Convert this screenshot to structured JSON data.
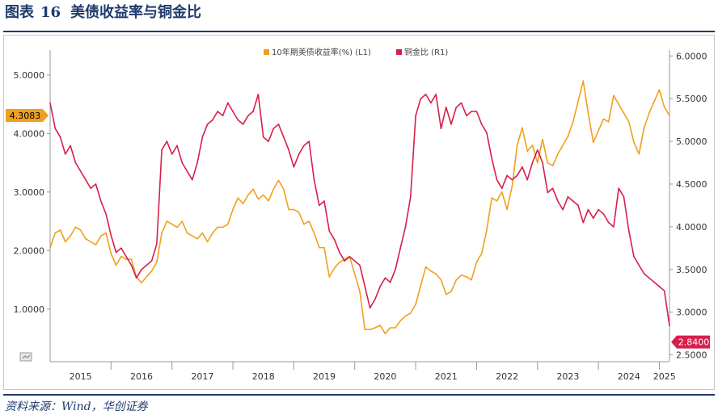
{
  "header": {
    "fig_label": "图表",
    "fig_number": "16",
    "title": "美债收益率与铜金比"
  },
  "source": "资料来源：Wind，华创证券",
  "chart_data": {
    "type": "line",
    "x_ticks": [
      "2015",
      "2016",
      "2017",
      "2018",
      "2019",
      "2020",
      "2021",
      "2022",
      "2023",
      "2024",
      "2025"
    ],
    "x_range": [
      "2015-01",
      "2025-03"
    ],
    "y_left": {
      "ticks": [
        "1.0000",
        "2.0000",
        "3.0000",
        "4.0000",
        "5.0000"
      ],
      "range": [
        0.1,
        5.4
      ]
    },
    "y_right": {
      "ticks": [
        "2.5000",
        "3.0000",
        "3.5000",
        "4.0000",
        "4.5000",
        "5.0000",
        "5.5000",
        "6.0000"
      ],
      "range": [
        2.42,
        6.05
      ]
    },
    "grid": false,
    "legend_position": "top-center",
    "series": [
      {
        "name": "10年期美债收益率(%) (L1)",
        "axis": "left",
        "color": "#f0a01e",
        "last_label": "4.3083",
        "points": [
          [
            "2015-01",
            2.05
          ],
          [
            "2015-02",
            2.3
          ],
          [
            "2015-03",
            2.35
          ],
          [
            "2015-04",
            2.15
          ],
          [
            "2015-05",
            2.25
          ],
          [
            "2015-06",
            2.4
          ],
          [
            "2015-07",
            2.35
          ],
          [
            "2015-08",
            2.2
          ],
          [
            "2015-09",
            2.15
          ],
          [
            "2015-10",
            2.1
          ],
          [
            "2015-11",
            2.25
          ],
          [
            "2015-12",
            2.3
          ],
          [
            "2016-01",
            1.95
          ],
          [
            "2016-02",
            1.75
          ],
          [
            "2016-03",
            1.9
          ],
          [
            "2016-04",
            1.85
          ],
          [
            "2016-05",
            1.85
          ],
          [
            "2016-06",
            1.55
          ],
          [
            "2016-07",
            1.45
          ],
          [
            "2016-08",
            1.55
          ],
          [
            "2016-09",
            1.65
          ],
          [
            "2016-10",
            1.8
          ],
          [
            "2016-11",
            2.3
          ],
          [
            "2016-12",
            2.5
          ],
          [
            "2017-01",
            2.45
          ],
          [
            "2017-02",
            2.4
          ],
          [
            "2017-03",
            2.5
          ],
          [
            "2017-04",
            2.3
          ],
          [
            "2017-05",
            2.25
          ],
          [
            "2017-06",
            2.2
          ],
          [
            "2017-07",
            2.3
          ],
          [
            "2017-08",
            2.15
          ],
          [
            "2017-09",
            2.3
          ],
          [
            "2017-10",
            2.4
          ],
          [
            "2017-11",
            2.4
          ],
          [
            "2017-12",
            2.45
          ],
          [
            "2018-01",
            2.7
          ],
          [
            "2018-02",
            2.9
          ],
          [
            "2018-03",
            2.8
          ],
          [
            "2018-04",
            2.95
          ],
          [
            "2018-05",
            3.05
          ],
          [
            "2018-06",
            2.88
          ],
          [
            "2018-07",
            2.95
          ],
          [
            "2018-08",
            2.85
          ],
          [
            "2018-09",
            3.05
          ],
          [
            "2018-10",
            3.2
          ],
          [
            "2018-11",
            3.05
          ],
          [
            "2018-12",
            2.7
          ],
          [
            "2019-01",
            2.7
          ],
          [
            "2019-02",
            2.65
          ],
          [
            "2019-03",
            2.45
          ],
          [
            "2019-04",
            2.5
          ],
          [
            "2019-05",
            2.3
          ],
          [
            "2019-06",
            2.05
          ],
          [
            "2019-07",
            2.05
          ],
          [
            "2019-08",
            1.55
          ],
          [
            "2019-09",
            1.7
          ],
          [
            "2019-10",
            1.8
          ],
          [
            "2019-11",
            1.85
          ],
          [
            "2019-12",
            1.9
          ],
          [
            "2020-01",
            1.6
          ],
          [
            "2020-02",
            1.3
          ],
          [
            "2020-03",
            0.65
          ],
          [
            "2020-04",
            0.65
          ],
          [
            "2020-05",
            0.68
          ],
          [
            "2020-06",
            0.72
          ],
          [
            "2020-07",
            0.58
          ],
          [
            "2020-08",
            0.68
          ],
          [
            "2020-09",
            0.68
          ],
          [
            "2020-10",
            0.8
          ],
          [
            "2020-11",
            0.88
          ],
          [
            "2020-12",
            0.93
          ],
          [
            "2021-01",
            1.08
          ],
          [
            "2021-02",
            1.4
          ],
          [
            "2021-03",
            1.72
          ],
          [
            "2021-04",
            1.65
          ],
          [
            "2021-05",
            1.6
          ],
          [
            "2021-06",
            1.5
          ],
          [
            "2021-07",
            1.25
          ],
          [
            "2021-08",
            1.3
          ],
          [
            "2021-09",
            1.5
          ],
          [
            "2021-10",
            1.58
          ],
          [
            "2021-11",
            1.55
          ],
          [
            "2021-12",
            1.5
          ],
          [
            "2022-01",
            1.8
          ],
          [
            "2022-02",
            1.95
          ],
          [
            "2022-03",
            2.35
          ],
          [
            "2022-04",
            2.9
          ],
          [
            "2022-05",
            2.85
          ],
          [
            "2022-06",
            3.0
          ],
          [
            "2022-07",
            2.7
          ],
          [
            "2022-08",
            3.1
          ],
          [
            "2022-09",
            3.8
          ],
          [
            "2022-10",
            4.1
          ],
          [
            "2022-11",
            3.7
          ],
          [
            "2022-12",
            3.8
          ],
          [
            "2023-01",
            3.5
          ],
          [
            "2023-02",
            3.9
          ],
          [
            "2023-03",
            3.5
          ],
          [
            "2023-04",
            3.45
          ],
          [
            "2023-05",
            3.65
          ],
          [
            "2023-06",
            3.8
          ],
          [
            "2023-07",
            3.95
          ],
          [
            "2023-08",
            4.2
          ],
          [
            "2023-09",
            4.55
          ],
          [
            "2023-10",
            4.9
          ],
          [
            "2023-11",
            4.35
          ],
          [
            "2023-12",
            3.85
          ],
          [
            "2024-01",
            4.05
          ],
          [
            "2024-02",
            4.25
          ],
          [
            "2024-03",
            4.2
          ],
          [
            "2024-04",
            4.65
          ],
          [
            "2024-05",
            4.5
          ],
          [
            "2024-06",
            4.35
          ],
          [
            "2024-07",
            4.2
          ],
          [
            "2024-08",
            3.85
          ],
          [
            "2024-09",
            3.65
          ],
          [
            "2024-10",
            4.1
          ],
          [
            "2024-11",
            4.35
          ],
          [
            "2024-12",
            4.55
          ],
          [
            "2025-01",
            4.75
          ],
          [
            "2025-02",
            4.45
          ],
          [
            "2025-03",
            4.31
          ]
        ]
      },
      {
        "name": "铜金比 (R1)",
        "axis": "right",
        "color": "#d81e4a",
        "last_label": "2.8400",
        "points": [
          [
            "2015-01",
            5.45
          ],
          [
            "2015-02",
            5.15
          ],
          [
            "2015-03",
            5.05
          ],
          [
            "2015-04",
            4.85
          ],
          [
            "2015-05",
            4.95
          ],
          [
            "2015-06",
            4.75
          ],
          [
            "2015-07",
            4.65
          ],
          [
            "2015-08",
            4.55
          ],
          [
            "2015-09",
            4.45
          ],
          [
            "2015-10",
            4.5
          ],
          [
            "2015-11",
            4.3
          ],
          [
            "2015-12",
            4.15
          ],
          [
            "2016-01",
            3.9
          ],
          [
            "2016-02",
            3.7
          ],
          [
            "2016-03",
            3.75
          ],
          [
            "2016-04",
            3.65
          ],
          [
            "2016-05",
            3.55
          ],
          [
            "2016-06",
            3.4
          ],
          [
            "2016-07",
            3.5
          ],
          [
            "2016-08",
            3.55
          ],
          [
            "2016-09",
            3.6
          ],
          [
            "2016-10",
            3.8
          ],
          [
            "2016-11",
            4.9
          ],
          [
            "2016-12",
            5.0
          ],
          [
            "2017-01",
            4.85
          ],
          [
            "2017-02",
            4.95
          ],
          [
            "2017-03",
            4.75
          ],
          [
            "2017-04",
            4.65
          ],
          [
            "2017-05",
            4.55
          ],
          [
            "2017-06",
            4.75
          ],
          [
            "2017-07",
            5.05
          ],
          [
            "2017-08",
            5.2
          ],
          [
            "2017-09",
            5.25
          ],
          [
            "2017-10",
            5.35
          ],
          [
            "2017-11",
            5.3
          ],
          [
            "2017-12",
            5.45
          ],
          [
            "2018-01",
            5.35
          ],
          [
            "2018-02",
            5.25
          ],
          [
            "2018-03",
            5.2
          ],
          [
            "2018-04",
            5.3
          ],
          [
            "2018-05",
            5.35
          ],
          [
            "2018-06",
            5.55
          ],
          [
            "2018-07",
            5.05
          ],
          [
            "2018-08",
            5.0
          ],
          [
            "2018-09",
            5.15
          ],
          [
            "2018-10",
            5.2
          ],
          [
            "2018-11",
            5.05
          ],
          [
            "2018-12",
            4.9
          ],
          [
            "2019-01",
            4.7
          ],
          [
            "2019-02",
            4.85
          ],
          [
            "2019-03",
            4.95
          ],
          [
            "2019-04",
            5.0
          ],
          [
            "2019-05",
            4.55
          ],
          [
            "2019-06",
            4.25
          ],
          [
            "2019-07",
            4.3
          ],
          [
            "2019-08",
            3.95
          ],
          [
            "2019-09",
            3.85
          ],
          [
            "2019-10",
            3.7
          ],
          [
            "2019-11",
            3.6
          ],
          [
            "2019-12",
            3.65
          ],
          [
            "2020-01",
            3.6
          ],
          [
            "2020-02",
            3.55
          ],
          [
            "2020-03",
            3.3
          ],
          [
            "2020-04",
            3.05
          ],
          [
            "2020-05",
            3.15
          ],
          [
            "2020-06",
            3.3
          ],
          [
            "2020-07",
            3.4
          ],
          [
            "2020-08",
            3.35
          ],
          [
            "2020-09",
            3.5
          ],
          [
            "2020-10",
            3.75
          ],
          [
            "2020-11",
            4.0
          ],
          [
            "2020-12",
            4.35
          ],
          [
            "2021-01",
            5.3
          ],
          [
            "2021-02",
            5.5
          ],
          [
            "2021-03",
            5.55
          ],
          [
            "2021-04",
            5.45
          ],
          [
            "2021-05",
            5.55
          ],
          [
            "2021-06",
            5.15
          ],
          [
            "2021-07",
            5.4
          ],
          [
            "2021-08",
            5.2
          ],
          [
            "2021-09",
            5.4
          ],
          [
            "2021-10",
            5.45
          ],
          [
            "2021-11",
            5.3
          ],
          [
            "2021-12",
            5.35
          ],
          [
            "2022-01",
            5.35
          ],
          [
            "2022-02",
            5.2
          ],
          [
            "2022-03",
            5.1
          ],
          [
            "2022-04",
            4.8
          ],
          [
            "2022-05",
            4.55
          ],
          [
            "2022-06",
            4.45
          ],
          [
            "2022-07",
            4.6
          ],
          [
            "2022-08",
            4.55
          ],
          [
            "2022-09",
            4.6
          ],
          [
            "2022-10",
            4.7
          ],
          [
            "2022-11",
            4.55
          ],
          [
            "2022-12",
            4.75
          ],
          [
            "2023-01",
            4.9
          ],
          [
            "2023-02",
            4.75
          ],
          [
            "2023-03",
            4.4
          ],
          [
            "2023-04",
            4.45
          ],
          [
            "2023-05",
            4.3
          ],
          [
            "2023-06",
            4.2
          ],
          [
            "2023-07",
            4.35
          ],
          [
            "2023-08",
            4.3
          ],
          [
            "2023-09",
            4.25
          ],
          [
            "2023-10",
            4.05
          ],
          [
            "2023-11",
            4.2
          ],
          [
            "2023-12",
            4.1
          ],
          [
            "2024-01",
            4.2
          ],
          [
            "2024-02",
            4.15
          ],
          [
            "2024-03",
            4.05
          ],
          [
            "2024-04",
            4.0
          ],
          [
            "2024-05",
            4.45
          ],
          [
            "2024-06",
            4.35
          ],
          [
            "2024-07",
            3.95
          ],
          [
            "2024-08",
            3.65
          ],
          [
            "2024-09",
            3.55
          ],
          [
            "2024-10",
            3.45
          ],
          [
            "2024-11",
            3.4
          ],
          [
            "2024-12",
            3.35
          ],
          [
            "2025-01",
            3.3
          ],
          [
            "2025-02",
            3.25
          ],
          [
            "2025-03",
            2.84
          ]
        ]
      }
    ]
  },
  "colors": {
    "navy": "#1f3a6b",
    "yield": "#f0a01e",
    "ratio": "#d81e4a"
  },
  "icons": {
    "corner_widget": "chart-toggle-icon"
  }
}
